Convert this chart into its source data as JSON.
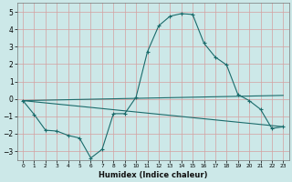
{
  "xlabel": "Humidex (Indice chaleur)",
  "bg_color": "#cce8e8",
  "grid_color": "#d4a0a0",
  "line_color": "#1a6b6b",
  "xlim": [
    -0.5,
    23.5
  ],
  "ylim": [
    -3.5,
    5.5
  ],
  "xticks": [
    0,
    1,
    2,
    3,
    4,
    5,
    6,
    7,
    8,
    9,
    10,
    11,
    12,
    13,
    14,
    15,
    16,
    17,
    18,
    19,
    20,
    21,
    22,
    23
  ],
  "yticks": [
    -3,
    -2,
    -1,
    0,
    1,
    2,
    3,
    4,
    5
  ],
  "line1_x": [
    0,
    1,
    2,
    3,
    4,
    5,
    6,
    7,
    8,
    9,
    10,
    11,
    12,
    13,
    14,
    15,
    16,
    17,
    18,
    19,
    20,
    21,
    22,
    23
  ],
  "line1_y": [
    -0.1,
    -0.9,
    -1.8,
    -1.85,
    -2.1,
    -2.25,
    -3.4,
    -2.9,
    -0.85,
    -0.85,
    0.1,
    2.7,
    4.2,
    4.75,
    4.9,
    4.85,
    3.2,
    2.4,
    1.95,
    0.25,
    -0.1,
    -0.6,
    -1.7,
    -1.6
  ],
  "line2_x": [
    0,
    23
  ],
  "line2_y": [
    -0.1,
    -1.6
  ],
  "line3_x": [
    0,
    23
  ],
  "line3_y": [
    -0.1,
    0.2
  ],
  "figsize": [
    3.2,
    2.0
  ],
  "dpi": 100
}
